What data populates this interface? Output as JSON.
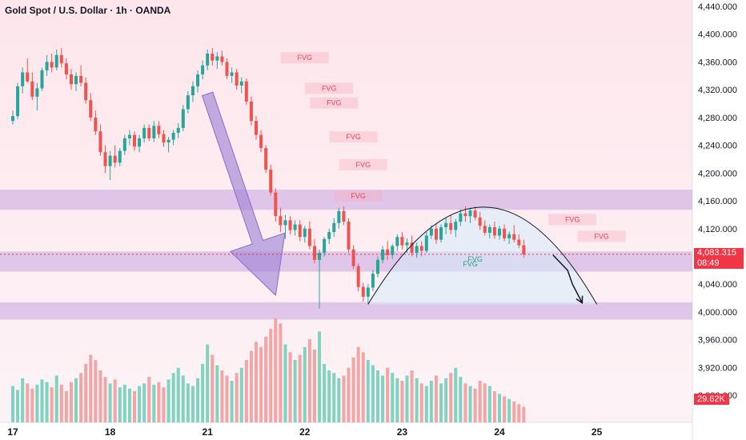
{
  "chart_title": "Gold Spot / U.S. Dollar · 1h · OANDA",
  "chart_data": {
    "type": "candlestick",
    "title": "Gold Spot / U.S. Dollar · 1h · OANDA",
    "y_ticks": [
      "4,440.000",
      "4,400.000",
      "4,360.000",
      "4,320.000",
      "4,280.000",
      "4,240.000",
      "4,200.000",
      "4,160.000",
      "4,120.000",
      "4,080.000",
      "4,040.000",
      "4,000.000",
      "3,960.000",
      "3,920.000",
      "3,880.000"
    ],
    "y_tick_values": [
      4440,
      4400,
      4360,
      4320,
      4280,
      4240,
      4200,
      4160,
      4120,
      4080,
      4040,
      4000,
      3960,
      3920,
      3880
    ],
    "ylim": [
      3840,
      4460
    ],
    "x_ticks": [
      "17",
      "18",
      "21",
      "22",
      "23",
      "24",
      "25"
    ],
    "x_tick_index": [
      0,
      20,
      40,
      60,
      80,
      100,
      120
    ],
    "last_price": "4,083.315",
    "countdown": "08:49",
    "volume_last": "29.62K",
    "annotations": {
      "fvg_label": "FVG",
      "fvg_red": [
        {
          "i": 60,
          "price": 4366
        },
        {
          "i": 65,
          "price": 4322
        },
        {
          "i": 66,
          "price": 4301
        },
        {
          "i": 70,
          "price": 4252
        },
        {
          "i": 72,
          "price": 4212
        },
        {
          "i": 71,
          "price": 4167
        },
        {
          "i": 115,
          "price": 4133
        },
        {
          "i": 121,
          "price": 4109
        }
      ],
      "fvg_green": [
        {
          "i": 95,
          "price": 4076
        },
        {
          "i": 94,
          "price": 4069
        }
      ],
      "support_zones": [
        {
          "from": 4147,
          "to": 4176
        },
        {
          "from": 4058,
          "to": 4087
        },
        {
          "from": 3989,
          "to": 4014
        }
      ],
      "dome_arc": {
        "from_i": 73,
        "peak_i": 97,
        "to_i": 120,
        "base": 4011,
        "peak": 4151
      },
      "arrow_down_big": {
        "from_i": 40,
        "from_price": 4314,
        "to_i": 54,
        "to_price": 4024
      },
      "arrow_projection": [
        {
          "i": 111,
          "price": 4082
        },
        {
          "i": 114,
          "price": 4060
        },
        {
          "i": 115,
          "price": 4040
        },
        {
          "i": 117,
          "price": 4013
        }
      ]
    },
    "candles": [
      [
        4275,
        4290,
        4270,
        4282
      ],
      [
        4282,
        4330,
        4278,
        4325
      ],
      [
        4325,
        4352,
        4315,
        4345
      ],
      [
        4345,
        4365,
        4330,
        4332
      ],
      [
        4332,
        4345,
        4305,
        4310
      ],
      [
        4310,
        4330,
        4290,
        4322
      ],
      [
        4322,
        4352,
        4318,
        4348
      ],
      [
        4348,
        4370,
        4340,
        4360
      ],
      [
        4360,
        4372,
        4345,
        4352
      ],
      [
        4352,
        4378,
        4348,
        4370
      ],
      [
        4370,
        4380,
        4352,
        4358
      ],
      [
        4358,
        4365,
        4335,
        4342
      ],
      [
        4342,
        4350,
        4320,
        4328
      ],
      [
        4328,
        4345,
        4318,
        4340
      ],
      [
        4340,
        4355,
        4325,
        4330
      ],
      [
        4330,
        4338,
        4300,
        4305
      ],
      [
        4305,
        4315,
        4275,
        4280
      ],
      [
        4280,
        4290,
        4255,
        4260
      ],
      [
        4260,
        4270,
        4225,
        4230
      ],
      [
        4230,
        4240,
        4200,
        4210
      ],
      [
        4210,
        4232,
        4190,
        4225
      ],
      [
        4225,
        4240,
        4208,
        4215
      ],
      [
        4215,
        4236,
        4210,
        4232
      ],
      [
        4232,
        4255,
        4226,
        4250
      ],
      [
        4250,
        4262,
        4240,
        4255
      ],
      [
        4255,
        4260,
        4232,
        4238
      ],
      [
        4238,
        4255,
        4230,
        4250
      ],
      [
        4250,
        4270,
        4244,
        4265
      ],
      [
        4265,
        4270,
        4246,
        4250
      ],
      [
        4250,
        4275,
        4245,
        4268
      ],
      [
        4268,
        4275,
        4250,
        4256
      ],
      [
        4256,
        4262,
        4238,
        4244
      ],
      [
        4244,
        4252,
        4230,
        4248
      ],
      [
        4248,
        4262,
        4240,
        4258
      ],
      [
        4258,
        4272,
        4250,
        4265
      ],
      [
        4265,
        4298,
        4260,
        4292
      ],
      [
        4292,
        4318,
        4286,
        4312
      ],
      [
        4312,
        4332,
        4302,
        4325
      ],
      [
        4325,
        4348,
        4316,
        4342
      ],
      [
        4342,
        4362,
        4335,
        4355
      ],
      [
        4355,
        4378,
        4348,
        4372
      ],
      [
        4372,
        4380,
        4355,
        4362
      ],
      [
        4362,
        4374,
        4350,
        4368
      ],
      [
        4368,
        4376,
        4355,
        4360
      ],
      [
        4360,
        4365,
        4335,
        4340
      ],
      [
        4340,
        4352,
        4330,
        4345
      ],
      [
        4345,
        4350,
        4320,
        4326
      ],
      [
        4326,
        4338,
        4315,
        4332
      ],
      [
        4332,
        4336,
        4298,
        4303
      ],
      [
        4303,
        4310,
        4268,
        4275
      ],
      [
        4275,
        4282,
        4248,
        4255
      ],
      [
        4255,
        4262,
        4230,
        4236
      ],
      [
        4236,
        4240,
        4200,
        4205
      ],
      [
        4205,
        4212,
        4168,
        4172
      ],
      [
        4172,
        4178,
        4130,
        4138
      ],
      [
        4138,
        4150,
        4115,
        4125
      ],
      [
        4125,
        4140,
        4105,
        4132
      ],
      [
        4132,
        4138,
        4112,
        4118
      ],
      [
        4118,
        4132,
        4110,
        4126
      ],
      [
        4126,
        4132,
        4102,
        4108
      ],
      [
        4108,
        4124,
        4100,
        4120
      ],
      [
        4120,
        4130,
        4090,
        4095
      ],
      [
        4095,
        4105,
        4070,
        4075
      ],
      [
        4075,
        4090,
        4005,
        4085
      ],
      [
        4085,
        4108,
        4080,
        4105
      ],
      [
        4105,
        4120,
        4098,
        4115
      ],
      [
        4115,
        4135,
        4108,
        4128
      ],
      [
        4128,
        4150,
        4120,
        4145
      ],
      [
        4145,
        4152,
        4125,
        4130
      ],
      [
        4130,
        4135,
        4085,
        4090
      ],
      [
        4090,
        4096,
        4062,
        4066
      ],
      [
        4066,
        4070,
        4030,
        4036
      ],
      [
        4036,
        4042,
        4015,
        4022
      ],
      [
        4022,
        4040,
        4012,
        4035
      ],
      [
        4035,
        4060,
        4030,
        4055
      ],
      [
        4055,
        4080,
        4050,
        4075
      ],
      [
        4075,
        4095,
        4070,
        4090
      ],
      [
        4090,
        4102,
        4075,
        4082
      ],
      [
        4082,
        4098,
        4076,
        4095
      ],
      [
        4095,
        4112,
        4088,
        4108
      ],
      [
        4108,
        4115,
        4090,
        4096
      ],
      [
        4096,
        4106,
        4085,
        4100
      ],
      [
        4100,
        4110,
        4080,
        4085
      ],
      [
        4085,
        4100,
        4078,
        4095
      ],
      [
        4095,
        4102,
        4080,
        4088
      ],
      [
        4088,
        4115,
        4085,
        4110
      ],
      [
        4110,
        4125,
        4105,
        4120
      ],
      [
        4120,
        4128,
        4098,
        4104
      ],
      [
        4104,
        4126,
        4100,
        4122
      ],
      [
        4122,
        4135,
        4112,
        4128
      ],
      [
        4128,
        4140,
        4112,
        4118
      ],
      [
        4118,
        4134,
        4108,
        4130
      ],
      [
        4130,
        4148,
        4124,
        4142
      ],
      [
        4142,
        4152,
        4130,
        4138
      ],
      [
        4138,
        4150,
        4128,
        4146
      ],
      [
        4146,
        4152,
        4132,
        4136
      ],
      [
        4136,
        4144,
        4118,
        4124
      ],
      [
        4124,
        4132,
        4110,
        4114
      ],
      [
        4114,
        4126,
        4106,
        4122
      ],
      [
        4122,
        4130,
        4105,
        4110
      ],
      [
        4110,
        4124,
        4104,
        4120
      ],
      [
        4120,
        4126,
        4102,
        4106
      ],
      [
        4106,
        4116,
        4098,
        4112
      ],
      [
        4112,
        4125,
        4100,
        4104
      ],
      [
        4104,
        4112,
        4092,
        4096
      ],
      [
        4096,
        4104,
        4078,
        4083
      ]
    ],
    "volumes": [
      28,
      25,
      34,
      30,
      26,
      29,
      33,
      31,
      27,
      36,
      29,
      24,
      31,
      34,
      38,
      45,
      52,
      48,
      40,
      35,
      30,
      33,
      27,
      29,
      26,
      24,
      28,
      30,
      35,
      29,
      31,
      27,
      33,
      38,
      42,
      36,
      30,
      28,
      34,
      45,
      60,
      52,
      44,
      40,
      36,
      32,
      38,
      42,
      48,
      55,
      62,
      58,
      66,
      72,
      80,
      76,
      60,
      54,
      48,
      52,
      58,
      64,
      56,
      70,
      45,
      40,
      38,
      34,
      36,
      42,
      50,
      58,
      54,
      48,
      44,
      40,
      36,
      42,
      38,
      34,
      32,
      36,
      40,
      34,
      30,
      28,
      32,
      36,
      30,
      34,
      38,
      42,
      35,
      30,
      28,
      26,
      32,
      30,
      28,
      24,
      22,
      20,
      18,
      16,
      14,
      12
    ]
  }
}
